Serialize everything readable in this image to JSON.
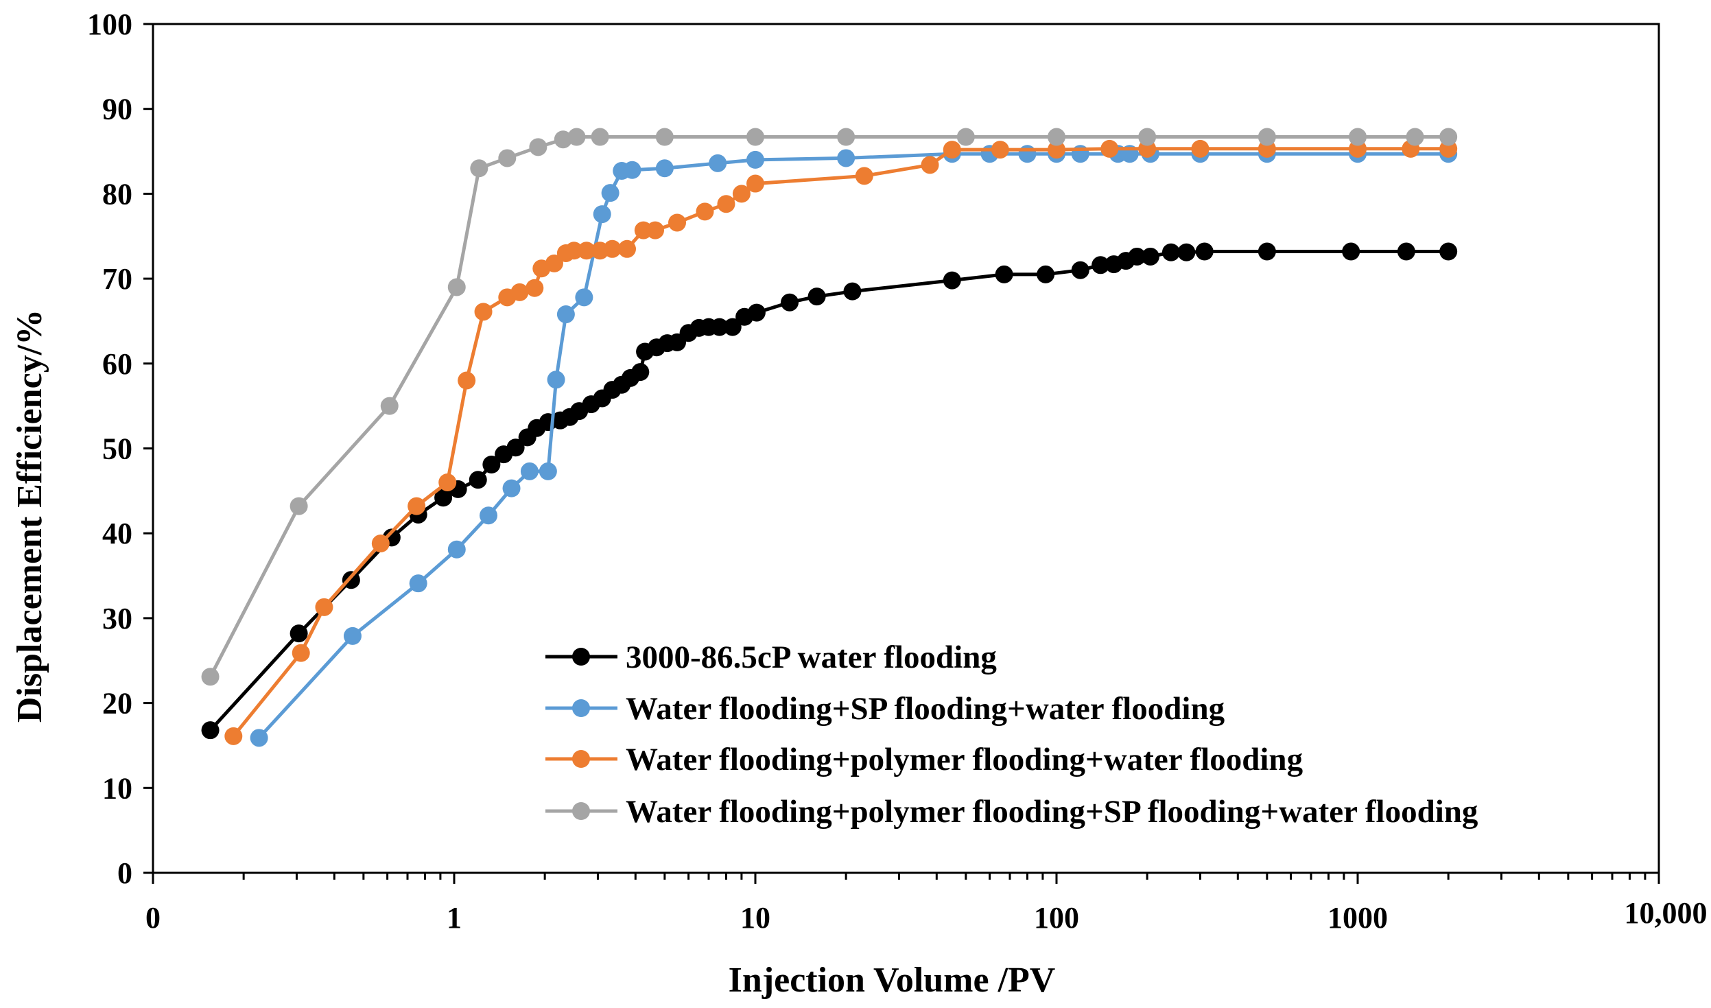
{
  "chart_data": {
    "type": "line",
    "xlabel": "Injection Volume /PV",
    "ylabel": "Displacement Efficiency/%",
    "x_scale": "log",
    "xlim": [
      0.1,
      10000
    ],
    "ylim": [
      0,
      100
    ],
    "x_tick_labels": [
      {
        "value": 0.1,
        "label": "0"
      },
      {
        "value": 1,
        "label": "1"
      },
      {
        "value": 10,
        "label": "10"
      },
      {
        "value": 100,
        "label": "100"
      },
      {
        "value": 1000,
        "label": "1000"
      },
      {
        "value": 10000,
        "label": "10,000"
      }
    ],
    "y_ticks": [
      0,
      10,
      20,
      30,
      40,
      50,
      60,
      70,
      80,
      90,
      100
    ],
    "grid": false,
    "legend_position": "bottom-center",
    "series": [
      {
        "name": "3000-86.5cP water flooding",
        "color": "#000000",
        "points": [
          [
            0.155,
            16.8
          ],
          [
            0.305,
            28.2
          ],
          [
            0.455,
            34.5
          ],
          [
            0.62,
            39.5
          ],
          [
            0.76,
            42.2
          ],
          [
            0.92,
            44.2
          ],
          [
            1.03,
            45.2
          ],
          [
            1.2,
            46.3
          ],
          [
            1.33,
            48.1
          ],
          [
            1.46,
            49.3
          ],
          [
            1.6,
            50.1
          ],
          [
            1.75,
            51.3
          ],
          [
            1.88,
            52.4
          ],
          [
            2.05,
            53.1
          ],
          [
            2.25,
            53.3
          ],
          [
            2.42,
            53.7
          ],
          [
            2.6,
            54.4
          ],
          [
            2.85,
            55.2
          ],
          [
            3.1,
            55.9
          ],
          [
            3.35,
            56.9
          ],
          [
            3.6,
            57.5
          ],
          [
            3.85,
            58.3
          ],
          [
            4.15,
            59.0
          ],
          [
            4.3,
            61.4
          ],
          [
            4.7,
            61.9
          ],
          [
            5.1,
            62.4
          ],
          [
            5.5,
            62.5
          ],
          [
            6.0,
            63.6
          ],
          [
            6.5,
            64.2
          ],
          [
            7.0,
            64.3
          ],
          [
            7.6,
            64.3
          ],
          [
            8.4,
            64.3
          ],
          [
            9.2,
            65.5
          ],
          [
            10.1,
            66.0
          ],
          [
            13.0,
            67.2
          ],
          [
            16.0,
            67.9
          ],
          [
            21.0,
            68.5
          ],
          [
            45.0,
            69.8
          ],
          [
            67.0,
            70.5
          ],
          [
            92.0,
            70.5
          ],
          [
            120.0,
            71.0
          ],
          [
            140.0,
            71.6
          ],
          [
            155.0,
            71.7
          ],
          [
            170.0,
            72.1
          ],
          [
            185.0,
            72.6
          ],
          [
            205.0,
            72.6
          ],
          [
            240.0,
            73.1
          ],
          [
            270.0,
            73.1
          ],
          [
            310.0,
            73.2
          ],
          [
            500.0,
            73.2
          ],
          [
            950.0,
            73.2
          ],
          [
            1450.0,
            73.2
          ],
          [
            2000.0,
            73.2
          ]
        ]
      },
      {
        "name": "Water flooding+SP flooding+water flooding",
        "color": "#5B9BD5",
        "points": [
          [
            0.225,
            15.9
          ],
          [
            0.46,
            27.9
          ],
          [
            0.76,
            34.1
          ],
          [
            1.02,
            38.1
          ],
          [
            1.3,
            42.1
          ],
          [
            1.55,
            45.3
          ],
          [
            1.78,
            47.3
          ],
          [
            2.05,
            47.3
          ],
          [
            2.18,
            58.1
          ],
          [
            2.35,
            65.8
          ],
          [
            2.7,
            67.8
          ],
          [
            3.1,
            77.6
          ],
          [
            3.3,
            80.1
          ],
          [
            3.6,
            82.7
          ],
          [
            3.9,
            82.8
          ],
          [
            5.0,
            83.0
          ],
          [
            7.5,
            83.6
          ],
          [
            10.0,
            84.0
          ],
          [
            20.0,
            84.2
          ],
          [
            45.0,
            84.7
          ],
          [
            60.0,
            84.7
          ],
          [
            80.0,
            84.7
          ],
          [
            100.0,
            84.7
          ],
          [
            120.0,
            84.7
          ],
          [
            160.0,
            84.7
          ],
          [
            175.0,
            84.7
          ],
          [
            205.0,
            84.7
          ],
          [
            300.0,
            84.7
          ],
          [
            500.0,
            84.7
          ],
          [
            1000.0,
            84.7
          ],
          [
            2000.0,
            84.7
          ]
        ]
      },
      {
        "name": "Water flooding+polymer flooding+water flooding",
        "color": "#ED7D31",
        "points": [
          [
            0.185,
            16.1
          ],
          [
            0.31,
            25.9
          ],
          [
            0.37,
            31.3
          ],
          [
            0.57,
            38.8
          ],
          [
            0.75,
            43.2
          ],
          [
            0.95,
            46.0
          ],
          [
            1.1,
            58.0
          ],
          [
            1.25,
            66.1
          ],
          [
            1.5,
            67.8
          ],
          [
            1.65,
            68.4
          ],
          [
            1.85,
            68.9
          ],
          [
            1.95,
            71.2
          ],
          [
            2.15,
            71.8
          ],
          [
            2.35,
            73.0
          ],
          [
            2.5,
            73.3
          ],
          [
            2.75,
            73.3
          ],
          [
            3.05,
            73.3
          ],
          [
            3.35,
            73.5
          ],
          [
            3.75,
            73.5
          ],
          [
            4.25,
            75.7
          ],
          [
            4.65,
            75.7
          ],
          [
            5.5,
            76.6
          ],
          [
            6.8,
            77.9
          ],
          [
            8.0,
            78.8
          ],
          [
            9.0,
            80.0
          ],
          [
            10.0,
            81.2
          ],
          [
            23.0,
            82.1
          ],
          [
            38.0,
            83.4
          ],
          [
            45.0,
            85.2
          ],
          [
            65.0,
            85.2
          ],
          [
            100.0,
            85.2
          ],
          [
            150.0,
            85.3
          ],
          [
            200.0,
            85.3
          ],
          [
            300.0,
            85.3
          ],
          [
            500.0,
            85.3
          ],
          [
            1000.0,
            85.3
          ],
          [
            1500.0,
            85.3
          ],
          [
            2000.0,
            85.3
          ]
        ]
      },
      {
        "name": "Water flooding+polymer flooding+SP flooding+water flooding",
        "color": "#A5A5A5",
        "points": [
          [
            0.155,
            23.1
          ],
          [
            0.305,
            43.2
          ],
          [
            0.61,
            55.0
          ],
          [
            1.02,
            69.0
          ],
          [
            1.21,
            83.0
          ],
          [
            1.5,
            84.2
          ],
          [
            1.9,
            85.5
          ],
          [
            2.3,
            86.4
          ],
          [
            2.55,
            86.7
          ],
          [
            3.05,
            86.7
          ],
          [
            5.0,
            86.7
          ],
          [
            10.0,
            86.7
          ],
          [
            20.0,
            86.7
          ],
          [
            50.0,
            86.7
          ],
          [
            100.0,
            86.7
          ],
          [
            200.0,
            86.7
          ],
          [
            500.0,
            86.7
          ],
          [
            1000.0,
            86.7
          ],
          [
            1550.0,
            86.7
          ],
          [
            2000.0,
            86.7
          ]
        ]
      }
    ]
  }
}
